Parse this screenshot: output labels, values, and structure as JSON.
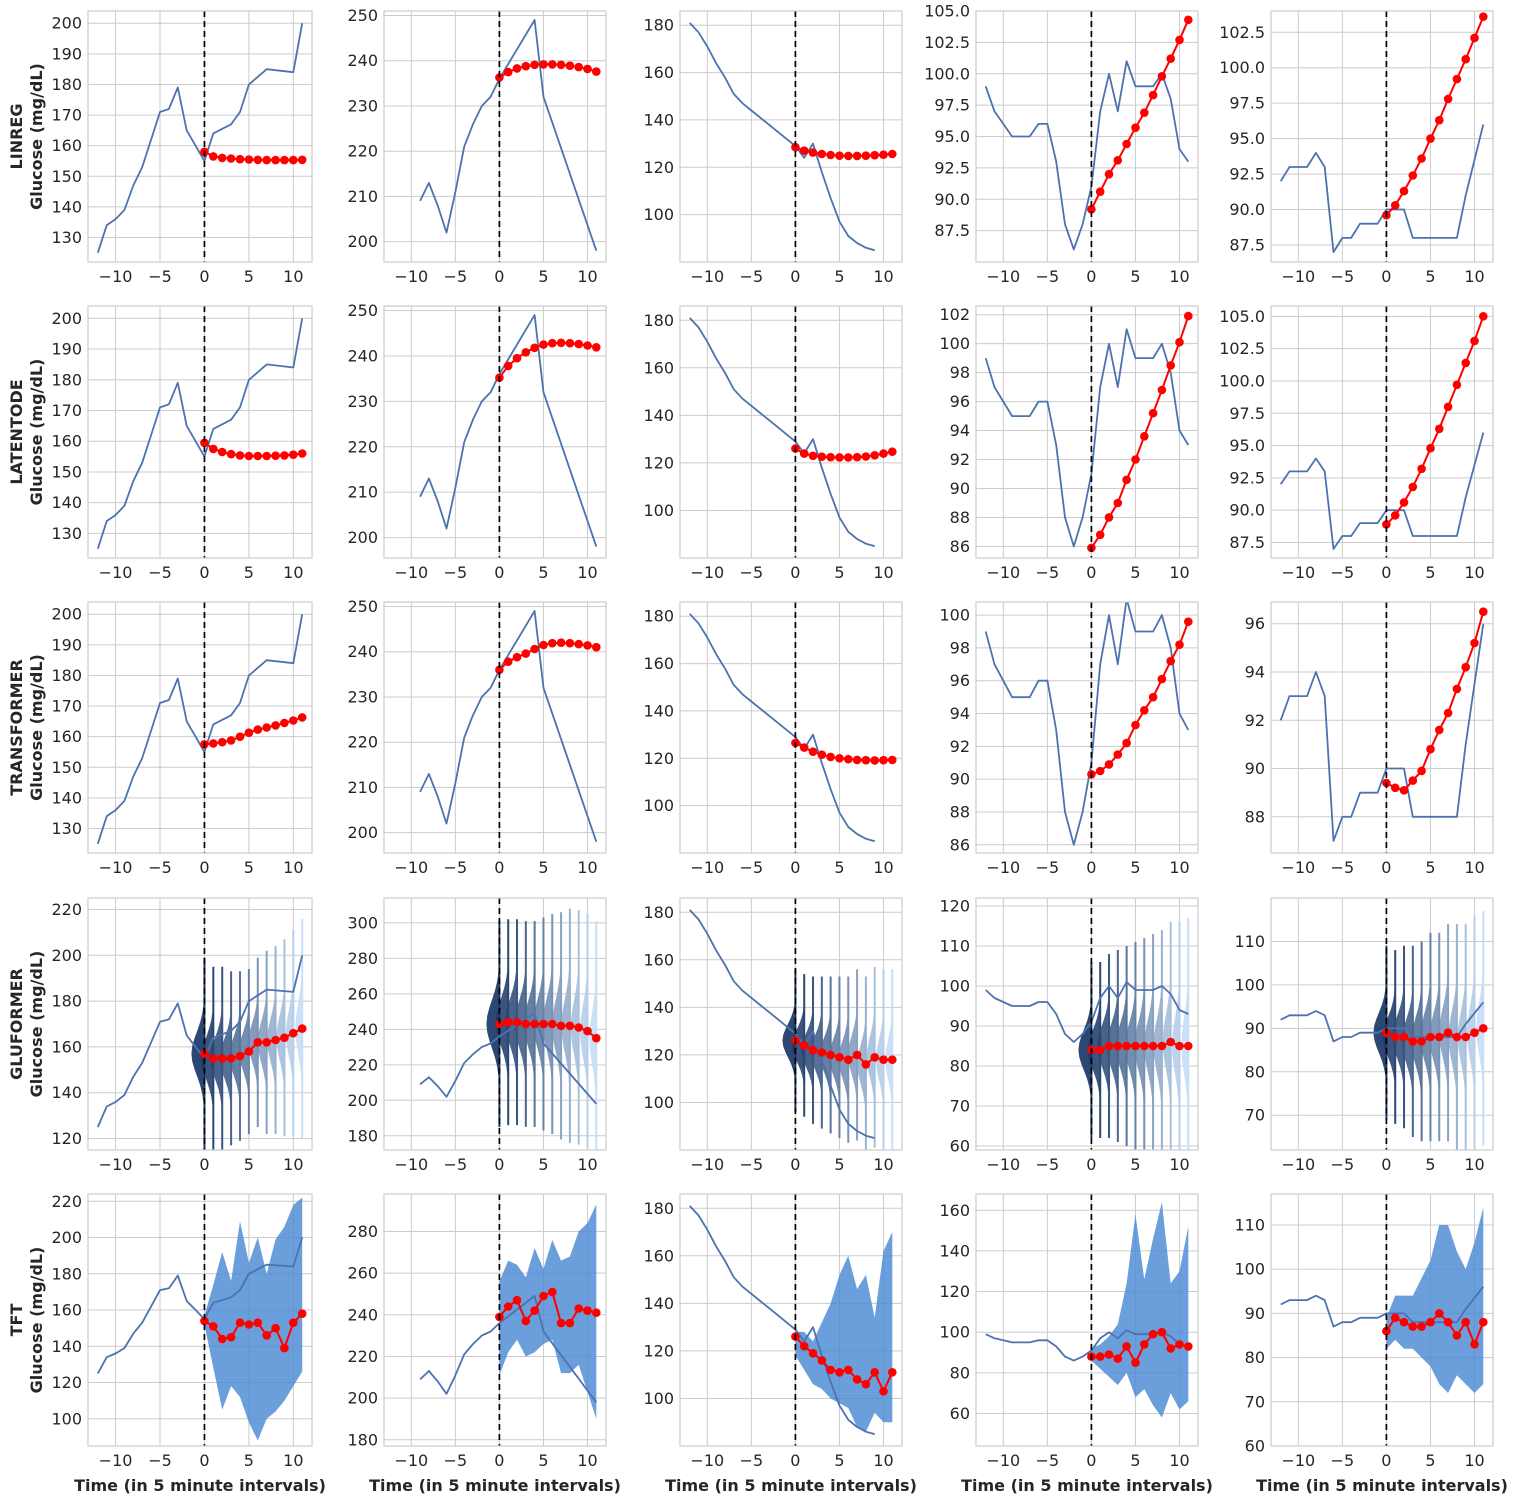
{
  "figure": {
    "x_label": "Time (in 5 minute intervals)",
    "y_label": "Glucose (mg/dL)",
    "x_ticks": [
      -10,
      -5,
      0,
      5,
      10
    ],
    "colors": {
      "actual": "#4c72b0",
      "forecast": "#ff0000",
      "vline": "#000000",
      "band": "#4a8ad4",
      "grid": "#cccccc"
    }
  },
  "history": [
    [
      125,
      134,
      136,
      139,
      147,
      153,
      162,
      171,
      172,
      179,
      165,
      160,
      155
    ],
    [
      209,
      213,
      208,
      202,
      211,
      221,
      226,
      230,
      232,
      236
    ],
    [
      181,
      177,
      171,
      164,
      158,
      151,
      147,
      144,
      141,
      138,
      135,
      132,
      129
    ],
    [
      99,
      97,
      96,
      95,
      95,
      95,
      96,
      96,
      93,
      88,
      86,
      88,
      91
    ],
    [
      92,
      93,
      93,
      93,
      94,
      93,
      87,
      88,
      88,
      89,
      89,
      89,
      90
    ]
  ],
  "actual_future": [
    [
      155,
      164,
      167,
      171,
      180,
      185,
      184,
      200
    ],
    [
      236,
      249,
      232,
      198
    ],
    [
      129,
      124,
      130,
      118,
      107,
      97,
      91,
      88,
      86,
      85
    ],
    [
      91,
      97,
      100,
      97,
      101,
      99,
      99,
      99,
      100,
      98,
      94,
      93
    ],
    [
      90,
      90,
      90,
      88,
      88,
      88,
      88,
      88,
      88,
      91,
      96
    ]
  ],
  "actual_future_x": [
    [
      0,
      1,
      3,
      4,
      5,
      7,
      10,
      11
    ],
    [
      0,
      4,
      5,
      11
    ],
    [
      0,
      1,
      2,
      3,
      4,
      5,
      6,
      7,
      8,
      9
    ],
    [
      0,
      1,
      2,
      3,
      4,
      5,
      6,
      7,
      8,
      9,
      10,
      11
    ],
    [
      0,
      1,
      2,
      3,
      4,
      5,
      6,
      7,
      8,
      9,
      11
    ]
  ],
  "chart_data": [
    {
      "type": "line",
      "model": "LINREG",
      "column": 1,
      "ylim": [
        122,
        204
      ],
      "yticks": [
        130,
        140,
        150,
        160,
        170,
        180,
        190,
        200
      ],
      "forecast": [
        158,
        156.5,
        156,
        155.8,
        155.6,
        155.5,
        155.4,
        155.3,
        155.3,
        155.3,
        155.3,
        155.4
      ]
    },
    {
      "type": "line",
      "model": "LINREG",
      "column": 2,
      "ylim": [
        195.5,
        251
      ],
      "yticks": [
        200,
        210,
        220,
        230,
        240,
        250
      ],
      "forecast": [
        236.3,
        237.5,
        238.3,
        238.8,
        239.1,
        239.2,
        239.2,
        239.1,
        238.9,
        238.6,
        238.2,
        237.6
      ]
    },
    {
      "type": "line",
      "model": "LINREG",
      "column": 3,
      "ylim": [
        80,
        186
      ],
      "yticks": [
        100,
        120,
        140,
        160,
        180
      ],
      "forecast": [
        128.5,
        127,
        126.2,
        125.6,
        125.2,
        124.9,
        124.8,
        124.8,
        124.9,
        125.1,
        125.3,
        125.6
      ]
    },
    {
      "type": "line",
      "model": "LINREG",
      "column": 4,
      "ylim": [
        85,
        105
      ],
      "yticks": [
        87.5,
        90.0,
        92.5,
        95.0,
        97.5,
        100.0,
        102.5,
        105.0
      ],
      "tick_labels": [
        "87.5",
        "90.0",
        "92.5",
        "95.0",
        "97.5",
        "100.0",
        "102.5",
        "105.0"
      ],
      "forecast": [
        89.2,
        90.6,
        92,
        93.1,
        94.4,
        95.7,
        96.9,
        98.3,
        99.8,
        101.2,
        102.7,
        104.3
      ]
    },
    {
      "type": "line",
      "model": "LINREG",
      "column": 5,
      "ylim": [
        86.3,
        104
      ],
      "yticks": [
        87.5,
        90.0,
        92.5,
        95.0,
        97.5,
        100.0,
        102.5
      ],
      "tick_labels": [
        "87.5",
        "90.0",
        "92.5",
        "95.0",
        "97.5",
        "100.0",
        "102.5"
      ],
      "forecast": [
        89.6,
        90.3,
        91.3,
        92.4,
        93.6,
        95,
        96.3,
        97.8,
        99.2,
        100.6,
        102.1,
        103.6
      ]
    },
    {
      "type": "line",
      "model": "LATENTODE",
      "column": 1,
      "ylim": [
        122,
        204
      ],
      "yticks": [
        130,
        140,
        150,
        160,
        170,
        180,
        190,
        200
      ],
      "forecast": [
        159.5,
        157.5,
        156.5,
        155.8,
        155.4,
        155.2,
        155.2,
        155.2,
        155.3,
        155.4,
        155.6,
        156
      ]
    },
    {
      "type": "line",
      "model": "LATENTODE",
      "column": 2,
      "ylim": [
        195.5,
        251
      ],
      "yticks": [
        200,
        210,
        220,
        230,
        240,
        250
      ],
      "forecast": [
        235.2,
        237.8,
        239.5,
        240.8,
        241.8,
        242.5,
        242.8,
        242.9,
        242.8,
        242.6,
        242.3,
        241.9
      ]
    },
    {
      "type": "line",
      "model": "LATENTODE",
      "column": 3,
      "ylim": [
        80,
        186
      ],
      "yticks": [
        100,
        120,
        140,
        160,
        180
      ],
      "forecast": [
        126,
        123.9,
        123,
        122.6,
        122.4,
        122.3,
        122.3,
        122.4,
        122.7,
        123.2,
        123.9,
        124.7
      ]
    },
    {
      "type": "line",
      "model": "LATENTODE",
      "column": 4,
      "ylim": [
        85.2,
        102.6
      ],
      "yticks": [
        86,
        88,
        90,
        92,
        94,
        96,
        98,
        100,
        102
      ],
      "forecast": [
        85.9,
        86.8,
        88,
        89,
        90.6,
        92,
        93.6,
        95.2,
        96.8,
        98.5,
        100.1,
        101.9
      ]
    },
    {
      "type": "line",
      "model": "LATENTODE",
      "column": 5,
      "ylim": [
        86.3,
        105.8
      ],
      "yticks": [
        87.5,
        90.0,
        92.5,
        95.0,
        97.5,
        100.0,
        102.5,
        105.0
      ],
      "tick_labels": [
        "87.5",
        "90.0",
        "92.5",
        "95.0",
        "97.5",
        "100.0",
        "102.5",
        "105.0"
      ],
      "forecast": [
        88.9,
        89.6,
        90.6,
        91.8,
        93.2,
        94.8,
        96.3,
        98,
        99.7,
        101.4,
        103.1,
        105
      ]
    },
    {
      "type": "line",
      "model": "TRANSFORMER",
      "column": 1,
      "ylim": [
        122,
        204
      ],
      "yticks": [
        130,
        140,
        150,
        160,
        170,
        180,
        190,
        200
      ],
      "forecast": [
        157.5,
        157.8,
        158.2,
        158.8,
        160,
        161.3,
        162.3,
        163,
        163.7,
        164.5,
        165.3,
        166.3
      ]
    },
    {
      "type": "line",
      "model": "TRANSFORMER",
      "column": 2,
      "ylim": [
        195.5,
        251
      ],
      "yticks": [
        200,
        210,
        220,
        230,
        240,
        250
      ],
      "forecast": [
        236,
        237.8,
        238.8,
        239.6,
        240.6,
        241.5,
        241.9,
        242,
        241.9,
        241.7,
        241.4,
        241
      ]
    },
    {
      "type": "line",
      "model": "TRANSFORMER",
      "column": 3,
      "ylim": [
        80,
        186
      ],
      "yticks": [
        100,
        120,
        140,
        160,
        180
      ],
      "forecast": [
        126.5,
        124.5,
        122.8,
        121.5,
        120.6,
        120,
        119.6,
        119.3,
        119.2,
        119.1,
        119.2,
        119.3
      ]
    },
    {
      "type": "line",
      "model": "TRANSFORMER",
      "column": 4,
      "ylim": [
        85.5,
        100.8
      ],
      "yticks": [
        86,
        88,
        90,
        92,
        94,
        96,
        98,
        100
      ],
      "forecast": [
        90.3,
        90.5,
        90.9,
        91.5,
        92.2,
        93.3,
        94.2,
        95,
        96.1,
        97.2,
        98.2,
        99.6
      ]
    },
    {
      "type": "line",
      "model": "TRANSFORMER",
      "column": 5,
      "ylim": [
        86.5,
        96.9
      ],
      "yticks": [
        88,
        90,
        92,
        94,
        96
      ],
      "forecast": [
        89.4,
        89.2,
        89.1,
        89.5,
        89.9,
        90.8,
        91.6,
        92.3,
        93.3,
        94.2,
        95.2,
        96.5
      ]
    },
    {
      "type": "violin",
      "model": "GLUFORMER",
      "column": 1,
      "ylim": [
        115,
        225
      ],
      "yticks": [
        120,
        140,
        160,
        180,
        200,
        220
      ],
      "forecast": [
        157,
        155,
        155,
        155,
        156,
        158,
        162,
        162,
        163,
        164,
        166,
        168
      ],
      "spread": [
        42,
        40,
        40,
        38,
        37,
        36,
        37,
        40,
        41,
        43,
        45,
        48
      ]
    },
    {
      "type": "violin",
      "model": "GLUFORMER",
      "column": 2,
      "ylim": [
        172,
        314
      ],
      "yticks": [
        180,
        200,
        220,
        240,
        260,
        280,
        300
      ],
      "forecast": [
        243,
        244,
        244,
        243,
        243,
        243,
        243,
        242,
        242,
        241,
        239,
        235
      ],
      "spread": [
        58,
        58,
        58,
        58,
        58,
        60,
        62,
        64,
        66,
        66,
        66,
        66
      ]
    },
    {
      "type": "violin",
      "model": "GLUFORMER",
      "column": 3,
      "ylim": [
        80,
        186
      ],
      "yticks": [
        100,
        120,
        140,
        160,
        180
      ],
      "forecast": [
        126,
        124,
        122,
        121,
        120,
        119,
        118,
        120,
        116,
        119,
        118,
        118
      ],
      "spread": [
        30,
        30,
        31,
        32,
        33,
        34,
        35,
        36,
        37,
        38,
        38,
        38
      ]
    },
    {
      "type": "violin",
      "model": "GLUFORMER",
      "column": 4,
      "ylim": [
        59,
        122
      ],
      "yticks": [
        60,
        70,
        80,
        90,
        100,
        110,
        120
      ],
      "forecast": [
        84,
        84,
        85,
        85,
        85,
        85,
        85,
        85,
        85,
        86,
        85,
        85
      ],
      "spread": [
        22,
        22,
        23,
        24,
        25,
        26,
        27,
        28,
        29,
        30,
        31,
        32
      ]
    },
    {
      "type": "violin",
      "model": "GLUFORMER",
      "column": 5,
      "ylim": [
        62,
        120
      ],
      "yticks": [
        70,
        80,
        90,
        100,
        110
      ],
      "forecast": [
        89,
        88,
        88,
        87,
        87,
        88,
        88,
        89,
        88,
        88,
        89,
        90
      ],
      "spread": [
        20,
        20,
        21,
        22,
        23,
        24,
        24,
        25,
        26,
        26,
        27,
        27
      ]
    },
    {
      "type": "band",
      "model": "TFT",
      "column": 1,
      "ylim": [
        85,
        224
      ],
      "yticks": [
        100,
        120,
        140,
        160,
        180,
        200,
        220
      ],
      "forecast": [
        154,
        151,
        144,
        145,
        153,
        152,
        153,
        146,
        150,
        139,
        153,
        158
      ],
      "lower": [
        152,
        128,
        105,
        118,
        112,
        98,
        88,
        100,
        104,
        110,
        118,
        126
      ],
      "upper": [
        157,
        174,
        192,
        176,
        209,
        186,
        200,
        180,
        199,
        206,
        218,
        222
      ]
    },
    {
      "type": "band",
      "model": "TFT",
      "column": 2,
      "ylim": [
        177,
        298
      ],
      "yticks": [
        180,
        200,
        220,
        240,
        260,
        280
      ],
      "forecast": [
        239,
        244,
        247,
        237,
        242,
        249,
        251,
        236,
        236,
        243,
        242,
        241
      ],
      "lower": [
        211,
        222,
        228,
        220,
        222,
        226,
        228,
        212,
        212,
        216,
        203,
        190
      ],
      "upper": [
        256,
        266,
        264,
        258,
        272,
        262,
        276,
        266,
        268,
        280,
        284,
        293
      ]
    },
    {
      "type": "band",
      "model": "TFT",
      "column": 3,
      "ylim": [
        80,
        186
      ],
      "yticks": [
        100,
        120,
        140,
        160,
        180
      ],
      "forecast": [
        126,
        122,
        119,
        116,
        112,
        111,
        112,
        108,
        106,
        111,
        103,
        111
      ],
      "lower": [
        118,
        112,
        106,
        104,
        100,
        98,
        96,
        88,
        86,
        94,
        90,
        90
      ],
      "upper": [
        128,
        128,
        124,
        132,
        140,
        152,
        160,
        146,
        152,
        134,
        162,
        170
      ]
    },
    {
      "type": "band",
      "model": "TFT",
      "column": 4,
      "ylim": [
        44,
        168
      ],
      "yticks": [
        60,
        80,
        100,
        120,
        140,
        160
      ],
      "forecast": [
        88,
        88,
        89,
        87,
        93,
        85,
        94,
        99,
        100,
        92,
        94,
        93
      ],
      "lower": [
        86,
        82,
        78,
        74,
        80,
        68,
        72,
        64,
        58,
        70,
        62,
        66
      ],
      "upper": [
        92,
        94,
        98,
        104,
        124,
        158,
        126,
        146,
        164,
        124,
        130,
        152
      ]
    },
    {
      "type": "band",
      "model": "TFT",
      "column": 5,
      "ylim": [
        60,
        117
      ],
      "yticks": [
        60,
        70,
        80,
        90,
        100,
        110
      ],
      "forecast": [
        86,
        89,
        88,
        87,
        87,
        88,
        90,
        88,
        85,
        88,
        83,
        88
      ],
      "lower": [
        82,
        84,
        82,
        82,
        80,
        78,
        74,
        72,
        76,
        74,
        72,
        74
      ],
      "upper": [
        89,
        94,
        94,
        94,
        98,
        102,
        110,
        110,
        104,
        100,
        106,
        114
      ]
    }
  ]
}
